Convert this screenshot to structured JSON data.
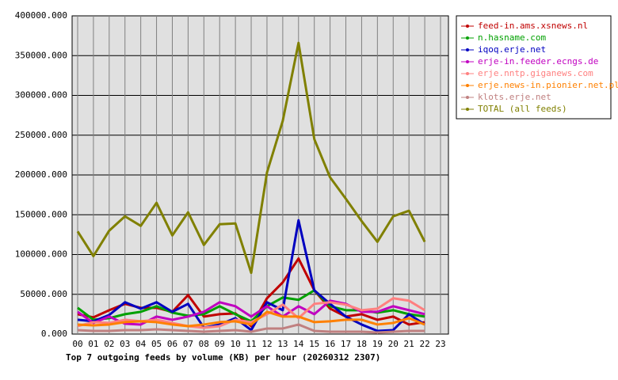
{
  "chart_data": {
    "type": "line",
    "title": "Top 7 outgoing feeds by volume (KB) per hour (20260312 2307)",
    "categories": [
      "00",
      "01",
      "02",
      "03",
      "04",
      "05",
      "06",
      "07",
      "08",
      "09",
      "10",
      "11",
      "12",
      "13",
      "14",
      "15",
      "16",
      "17",
      "18",
      "19",
      "20",
      "21",
      "22",
      "23"
    ],
    "ylim": [
      0,
      400000
    ],
    "yticks": [
      {
        "value": 0,
        "label": "0.000"
      },
      {
        "value": 50000,
        "label": "50000.000"
      },
      {
        "value": 100000,
        "label": "100000.000"
      },
      {
        "value": 150000,
        "label": "150000.000"
      },
      {
        "value": 200000,
        "label": "200000.000"
      },
      {
        "value": 250000,
        "label": "250000.000"
      },
      {
        "value": 300000,
        "label": "300000.000"
      },
      {
        "value": 350000,
        "label": "350000.000"
      },
      {
        "value": 400000,
        "label": "400000.000"
      }
    ],
    "grid": true,
    "legend": "right",
    "series": [
      {
        "name": "feed-in.ams.xsnews.nl",
        "color": "#c00000",
        "values": [
          25000,
          21000,
          30000,
          38000,
          33000,
          33000,
          28000,
          49000,
          22000,
          25000,
          26000,
          10000,
          45000,
          65000,
          95000,
          55000,
          32000,
          22000,
          25000,
          18000,
          22000,
          12000,
          15000,
          null
        ]
      },
      {
        "name": "n.hasname.com",
        "color": "#00a000",
        "values": [
          33000,
          18000,
          20000,
          25000,
          28000,
          35000,
          27000,
          23000,
          25000,
          35000,
          25000,
          16000,
          35000,
          46000,
          43000,
          55000,
          35000,
          30000,
          30000,
          27000,
          30000,
          25000,
          22000,
          null
        ]
      },
      {
        "name": "iqoq.erje.net",
        "color": "#0000c0",
        "values": [
          18000,
          16000,
          24000,
          40000,
          32000,
          40000,
          28000,
          38000,
          8000,
          12000,
          20000,
          5000,
          40000,
          30000,
          143000,
          55000,
          38000,
          22000,
          12000,
          4000,
          5000,
          25000,
          12000,
          null
        ]
      },
      {
        "name": "erje-in.feeder.ecngs.de",
        "color": "#c000c0",
        "values": [
          28000,
          14000,
          22000,
          13000,
          12000,
          22000,
          18000,
          22000,
          28000,
          40000,
          35000,
          22000,
          35000,
          22000,
          35000,
          25000,
          42000,
          38000,
          28000,
          28000,
          35000,
          30000,
          25000,
          null
        ]
      },
      {
        "name": "erje.nntp.giganews.com",
        "color": "#ff8080",
        "values": [
          10000,
          15000,
          14000,
          18000,
          16000,
          18000,
          14000,
          10000,
          8000,
          10000,
          18000,
          15000,
          25000,
          37000,
          20000,
          38000,
          40000,
          37000,
          30000,
          32000,
          45000,
          42000,
          30000,
          null
        ]
      },
      {
        "name": "erje.news-in.pionier.net.pl",
        "color": "#ff8000",
        "values": [
          12000,
          11000,
          12000,
          15000,
          16000,
          15000,
          12000,
          10000,
          12000,
          15000,
          16000,
          12000,
          28000,
          22000,
          22000,
          15000,
          16000,
          18000,
          18000,
          12000,
          14000,
          20000,
          12000,
          null
        ]
      },
      {
        "name": "klots.erje.net",
        "color": "#c08080",
        "values": [
          5000,
          4000,
          4000,
          5000,
          5000,
          6000,
          5000,
          4000,
          3000,
          4000,
          5000,
          3000,
          7000,
          7000,
          12000,
          4000,
          3000,
          3000,
          3000,
          2000,
          3000,
          4000,
          4000,
          null
        ]
      },
      {
        "name": "TOTAL (all feeds)",
        "color": "#808000",
        "values": [
          129000,
          98000,
          130000,
          148000,
          136000,
          165000,
          124000,
          153000,
          112000,
          138000,
          139000,
          77000,
          203000,
          268000,
          366000,
          245000,
          197000,
          170000,
          142000,
          116000,
          148000,
          155000,
          116000,
          null
        ]
      }
    ]
  }
}
